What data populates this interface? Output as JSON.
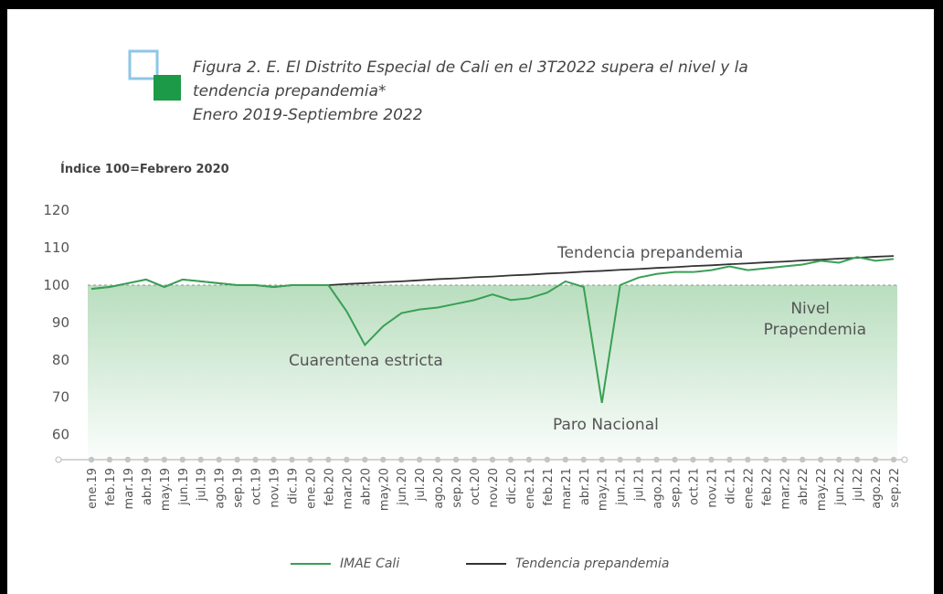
{
  "figure": {
    "title_line1": "Figura 2. E. El Distrito Especial de Cali en el 3T2022 supera el nivel y la",
    "title_line2": "tendencia prepandemia*",
    "subtitle": "Enero 2019-Septiembre 2022",
    "index_label": "Índice 100=Febrero 2020"
  },
  "colors": {
    "imae": "#39a055",
    "trend": "#333333",
    "logo_blue": "#8cc7e6",
    "logo_green": "#1c9a48",
    "fill": "#b5dcbb"
  },
  "chart_data": {
    "type": "line",
    "x": [
      "ene.19",
      "feb.19",
      "mar.19",
      "abr.19",
      "may.19",
      "jun.19",
      "jul.19",
      "ago.19",
      "sep.19",
      "oct.19",
      "nov.19",
      "dic.19",
      "ene.20",
      "feb.20",
      "mar.20",
      "abr.20",
      "may.20",
      "jun.20",
      "jul.20",
      "ago.20",
      "sep.20",
      "oct.20",
      "nov.20",
      "dic.20",
      "ene.21",
      "feb.21",
      "mar.21",
      "abr.21",
      "may.21",
      "jun.21",
      "jul.21",
      "ago.21",
      "sep.21",
      "oct.21",
      "nov.21",
      "dic.21",
      "ene.22",
      "feb.22",
      "mar.22",
      "abr.22",
      "may.22",
      "jun.22",
      "jul.22",
      "ago.22",
      "sep.22"
    ],
    "series": [
      {
        "name": "IMAE Cali",
        "values": [
          99,
          99.5,
          100.5,
          101.5,
          99.5,
          101.5,
          101,
          100.5,
          100,
          100,
          99.5,
          100,
          100,
          100,
          93,
          84,
          89,
          92.5,
          93.5,
          94,
          95,
          96,
          97.5,
          96,
          96.5,
          98,
          101,
          99.5,
          68.5,
          100,
          102,
          103,
          103.5,
          103.5,
          104,
          105,
          104,
          104.5,
          105,
          105.5,
          106.5,
          106,
          107.5,
          106.5,
          107
        ]
      },
      {
        "name": "Tendencia prepandemia",
        "values": [
          99,
          99.5,
          100.5,
          101.5,
          99.5,
          101.5,
          101,
          100.5,
          100,
          100,
          99.5,
          100,
          100,
          100,
          100.3,
          100.5,
          100.8,
          101.0,
          101.3,
          101.6,
          101.8,
          102.1,
          102.3,
          102.6,
          102.8,
          103.1,
          103.3,
          103.6,
          103.8,
          104.1,
          104.3,
          104.6,
          104.8,
          105.1,
          105.3,
          105.6,
          105.8,
          106.1,
          106.3,
          106.6,
          106.8,
          107.1,
          107.3,
          107.6,
          107.8
        ]
      }
    ],
    "yticks": [
      60,
      70,
      80,
      90,
      100,
      110,
      120
    ],
    "ylim": [
      57,
      122
    ],
    "reference_level": 100,
    "annotations": {
      "trend": "Tendencia prepandemia",
      "quarantine": "Cuarentena estricta",
      "strike": "Paro Nacional",
      "level1": "Nivel",
      "level2": "Prapendemia"
    },
    "legend": [
      "IMAE Cali",
      "Tendencia prepandemia"
    ],
    "legend_position": "bottom",
    "grid": false
  }
}
